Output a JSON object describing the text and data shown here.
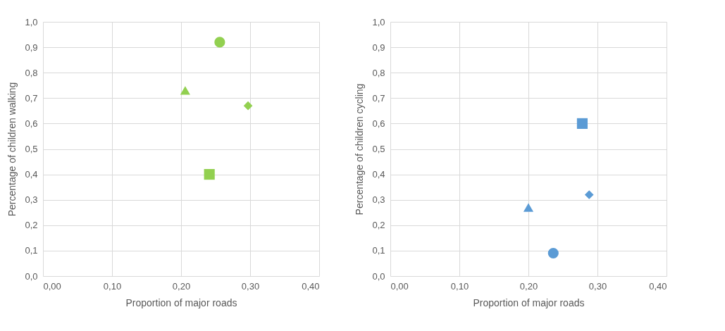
{
  "chart_data": [
    {
      "type": "scatter",
      "xlabel": "Proportion of major roads",
      "ylabel": "Percentage of children walking",
      "xlim": [
        0,
        0.4
      ],
      "ylim": [
        0,
        1
      ],
      "grid": true,
      "xticks": [
        {
          "value": 0,
          "label": "0,00"
        },
        {
          "value": 0.1,
          "label": "0,10"
        },
        {
          "value": 0.2,
          "label": "0,20"
        },
        {
          "value": 0.3,
          "label": "0,30"
        },
        {
          "value": 0.4,
          "label": "0,40"
        }
      ],
      "yticks": [
        {
          "value": 0,
          "label": "0,0"
        },
        {
          "value": 0.1,
          "label": "0,1"
        },
        {
          "value": 0.2,
          "label": "0,2"
        },
        {
          "value": 0.3,
          "label": "0,3"
        },
        {
          "value": 0.4,
          "label": "0,4"
        },
        {
          "value": 0.5,
          "label": "0,5"
        },
        {
          "value": 0.6,
          "label": "0,6"
        },
        {
          "value": 0.7,
          "label": "0,7"
        },
        {
          "value": 0.8,
          "label": "0,8"
        },
        {
          "value": 0.9,
          "label": "0,9"
        },
        {
          "value": 1,
          "label": "1,0"
        }
      ],
      "series": [
        {
          "color": "#92d050",
          "marker": "circle",
          "x": [
            0.256
          ],
          "values": [
            0.92
          ]
        },
        {
          "color": "#92d050",
          "marker": "triangle",
          "x": [
            0.206
          ],
          "values": [
            0.73
          ]
        },
        {
          "color": "#92d050",
          "marker": "diamond",
          "x": [
            0.297
          ],
          "values": [
            0.67
          ]
        },
        {
          "color": "#92d050",
          "marker": "square",
          "x": [
            0.241
          ],
          "values": [
            0.4
          ]
        }
      ]
    },
    {
      "type": "scatter",
      "xlabel": "Proportion of major roads",
      "ylabel": "Percentage of children cycling",
      "xlim": [
        0,
        0.4
      ],
      "ylim": [
        0,
        1
      ],
      "grid": true,
      "xticks": [
        {
          "value": 0,
          "label": "0,00"
        },
        {
          "value": 0.1,
          "label": "0,10"
        },
        {
          "value": 0.2,
          "label": "0,20"
        },
        {
          "value": 0.3,
          "label": "0,30"
        },
        {
          "value": 0.4,
          "label": "0,40"
        }
      ],
      "yticks": [
        {
          "value": 0,
          "label": "0,0"
        },
        {
          "value": 0.1,
          "label": "0,1"
        },
        {
          "value": 0.2,
          "label": "0,2"
        },
        {
          "value": 0.3,
          "label": "0,3"
        },
        {
          "value": 0.4,
          "label": "0,4"
        },
        {
          "value": 0.5,
          "label": "0,5"
        },
        {
          "value": 0.6,
          "label": "0,6"
        },
        {
          "value": 0.7,
          "label": "0,7"
        },
        {
          "value": 0.8,
          "label": "0,8"
        },
        {
          "value": 0.9,
          "label": "0,9"
        },
        {
          "value": 1,
          "label": "1,0"
        }
      ],
      "series": [
        {
          "color": "#5b9bd5",
          "marker": "square",
          "x": [
            0.278
          ],
          "values": [
            0.6
          ]
        },
        {
          "color": "#5b9bd5",
          "marker": "diamond",
          "x": [
            0.288
          ],
          "values": [
            0.32
          ]
        },
        {
          "color": "#5b9bd5",
          "marker": "triangle",
          "x": [
            0.2
          ],
          "values": [
            0.27
          ]
        },
        {
          "color": "#5b9bd5",
          "marker": "circle",
          "x": [
            0.236
          ],
          "values": [
            0.09
          ]
        }
      ]
    }
  ]
}
